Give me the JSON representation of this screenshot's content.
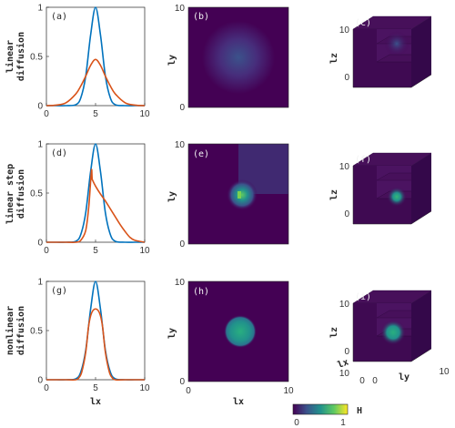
{
  "colors": {
    "initial_line": "#0072bd",
    "final_line": "#d95319",
    "bg": "#440154",
    "blob": "#21918c",
    "blob_dark": "#3b528b",
    "blob_bright": "#5ec962",
    "yellow": "#fde725"
  },
  "rows": [
    {
      "label_line1": "linear",
      "label_line2": "diffusion"
    },
    {
      "label_line1": "linear step",
      "label_line2": "diffusion"
    },
    {
      "label_line1": "nonlinear",
      "label_line2": "diffusion"
    }
  ],
  "panels": {
    "a": "(a)",
    "b": "(b)",
    "c": "(c)",
    "d": "(d)",
    "e": "(e)",
    "f": "(f)",
    "g": "(g)",
    "h": "(h)",
    "i": "(i)"
  },
  "axis": {
    "lx": "lx",
    "ly": "ly",
    "lz": "lz",
    "x_ticks": [
      "0",
      "5",
      "10"
    ],
    "y_ticks_1d": [
      "0",
      "0.5",
      "1"
    ],
    "map_ticks_left": [
      "10",
      "0"
    ],
    "cube_ticks": [
      "10",
      "0"
    ]
  },
  "colorbar": {
    "label": "H",
    "min": "0",
    "max": "1"
  },
  "chart_data": [
    {
      "type": "line",
      "panel": "(a)",
      "xlabel": "",
      "ylabel": "linear diffusion",
      "xlim": [
        0,
        10
      ],
      "ylim": [
        0,
        1
      ],
      "series": [
        {
          "x": [
            0,
            1,
            2,
            3,
            3.5,
            4,
            4.5,
            5,
            5.5,
            6,
            6.5,
            7,
            8,
            9,
            10
          ],
          "values": [
            0,
            0,
            0,
            0.01,
            0.08,
            0.3,
            0.72,
            1.0,
            0.72,
            0.3,
            0.08,
            0.01,
            0,
            0,
            0
          ]
        },
        {
          "x": [
            0,
            1,
            2,
            3,
            3.5,
            4,
            4.5,
            5,
            5.5,
            6,
            6.5,
            7,
            8,
            9,
            10
          ],
          "values": [
            0,
            0.005,
            0.03,
            0.12,
            0.2,
            0.3,
            0.41,
            0.47,
            0.41,
            0.3,
            0.2,
            0.12,
            0.03,
            0.005,
            0
          ]
        }
      ]
    },
    {
      "type": "line",
      "panel": "(d)",
      "xlabel": "",
      "ylabel": "linear step diffusion",
      "xlim": [
        0,
        10
      ],
      "ylim": [
        0,
        1
      ],
      "series": [
        {
          "x": [
            0,
            1,
            2,
            3,
            3.5,
            4,
            4.5,
            5,
            5.5,
            6,
            6.5,
            7,
            8,
            9,
            10
          ],
          "values": [
            0,
            0,
            0,
            0.01,
            0.08,
            0.3,
            0.72,
            1.0,
            0.72,
            0.3,
            0.08,
            0.01,
            0,
            0,
            0
          ]
        },
        {
          "x": [
            0,
            1,
            2,
            3,
            3.5,
            4,
            4.3,
            4.5,
            4.6,
            4.65,
            4.7,
            5,
            5.5,
            6,
            6.5,
            7,
            7.5,
            8,
            8.5,
            9,
            10
          ],
          "values": [
            0,
            0,
            0,
            0,
            0.02,
            0.12,
            0.35,
            0.62,
            0.74,
            0.65,
            0.63,
            0.57,
            0.49,
            0.42,
            0.34,
            0.26,
            0.18,
            0.11,
            0.05,
            0.02,
            0
          ]
        }
      ]
    },
    {
      "type": "line",
      "panel": "(g)",
      "xlabel": "lx",
      "ylabel": "nonlinear diffusion",
      "xlim": [
        0,
        10
      ],
      "ylim": [
        0,
        1
      ],
      "series": [
        {
          "x": [
            0,
            1,
            2,
            3,
            3.5,
            4,
            4.5,
            5,
            5.5,
            6,
            6.5,
            7,
            8,
            9,
            10
          ],
          "values": [
            0,
            0,
            0,
            0.01,
            0.08,
            0.3,
            0.72,
            1.0,
            0.72,
            0.3,
            0.08,
            0.01,
            0,
            0,
            0
          ]
        },
        {
          "x": [
            0,
            1,
            2,
            3,
            3.3,
            3.6,
            4,
            4.3,
            4.6,
            5,
            5.4,
            5.7,
            6,
            6.4,
            6.7,
            7,
            8,
            9,
            10
          ],
          "values": [
            0,
            0,
            0,
            0,
            0.02,
            0.08,
            0.28,
            0.55,
            0.68,
            0.72,
            0.68,
            0.55,
            0.28,
            0.08,
            0.02,
            0,
            0,
            0,
            0
          ]
        }
      ]
    },
    {
      "type": "heatmap",
      "panel": "(b)",
      "xlim": [
        0,
        10
      ],
      "ylim": [
        0,
        10
      ],
      "ylabel": "ly"
    },
    {
      "type": "heatmap",
      "panel": "(e)",
      "xlim": [
        0,
        10
      ],
      "ylim": [
        0,
        10
      ],
      "ylabel": "ly"
    },
    {
      "type": "heatmap",
      "panel": "(h)",
      "xlim": [
        0,
        10
      ],
      "ylim": [
        0,
        10
      ],
      "xlabel": "lx",
      "ylabel": "ly"
    }
  ]
}
